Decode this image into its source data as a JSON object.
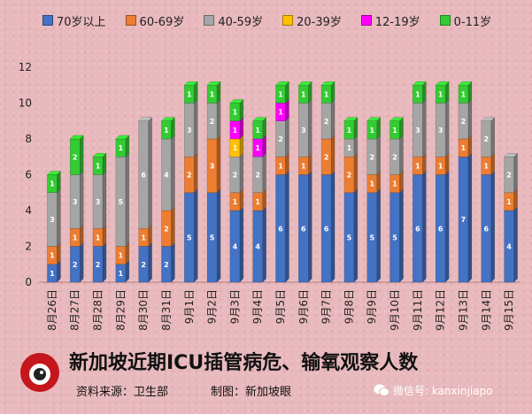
{
  "legend": [
    {
      "label": "70岁以上",
      "color": "#4472c4"
    },
    {
      "label": "60-69岁",
      "color": "#ed7d31"
    },
    {
      "label": "40-59岁",
      "color": "#a5a5a5"
    },
    {
      "label": "20-39岁",
      "color": "#ffc000"
    },
    {
      "label": "12-19岁",
      "color": "#ff00ff"
    },
    {
      "label": "0-11岁",
      "color": "#33cc33"
    }
  ],
  "chart_data": {
    "type": "bar",
    "stacked": true,
    "title": "新加坡近期ICU插管病危、输氧观察人数",
    "xlabel": "",
    "ylabel": "",
    "ylim": [
      0,
      12
    ],
    "yticks": [
      0,
      2,
      4,
      6,
      8,
      10,
      12
    ],
    "grid": false,
    "legend_position": "top",
    "categories": [
      "8月26日",
      "8月27日",
      "8月28日",
      "8月29日",
      "8月30日",
      "8月31日",
      "9月1日",
      "9月2日",
      "9月3日",
      "9月4日",
      "9月5日",
      "9月6日",
      "9月7日",
      "9月8日",
      "9月9日",
      "9月10日",
      "9月11日",
      "9月12日",
      "9月13日",
      "9月14日",
      "9月15日"
    ],
    "series": [
      {
        "name": "70岁以上",
        "color": "#4472c4",
        "values": [
          1,
          2,
          2,
          1,
          2,
          2,
          5,
          5,
          4,
          4,
          6,
          6,
          6,
          5,
          5,
          5,
          6,
          6,
          7,
          6,
          4
        ]
      },
      {
        "name": "60-69岁",
        "color": "#ed7d31",
        "values": [
          1,
          1,
          1,
          1,
          1,
          2,
          2,
          3,
          1,
          1,
          1,
          1,
          2,
          2,
          1,
          1,
          1,
          1,
          1,
          1,
          1
        ]
      },
      {
        "name": "40-59岁",
        "color": "#a5a5a5",
        "values": [
          3,
          3,
          3,
          5,
          6,
          4,
          3,
          2,
          2,
          2,
          2,
          3,
          2,
          1,
          2,
          2,
          3,
          3,
          2,
          2,
          2
        ]
      },
      {
        "name": "20-39岁",
        "color": "#ffc000",
        "values": [
          0,
          0,
          0,
          0,
          0,
          0,
          0,
          0,
          1,
          0,
          0,
          0,
          0,
          0,
          0,
          0,
          0,
          0,
          0,
          0,
          0
        ]
      },
      {
        "name": "12-19岁",
        "color": "#ff00ff",
        "values": [
          0,
          0,
          0,
          0,
          0,
          0,
          0,
          0,
          1,
          1,
          1,
          0,
          0,
          0,
          0,
          0,
          0,
          0,
          0,
          0,
          0
        ]
      },
      {
        "name": "0-11岁",
        "color": "#33cc33",
        "values": [
          1,
          2,
          1,
          1,
          0,
          1,
          1,
          1,
          1,
          1,
          1,
          1,
          1,
          1,
          1,
          1,
          1,
          1,
          1,
          0,
          0
        ]
      }
    ]
  },
  "footer": {
    "title": "新加坡近期ICU插管病危、输氧观察人数",
    "source": "资料来源：卫生部",
    "made_by": "制图：新加坡眼",
    "logo_text": "新加坡眼",
    "wechat": "微信号: kanxinjiapo"
  }
}
